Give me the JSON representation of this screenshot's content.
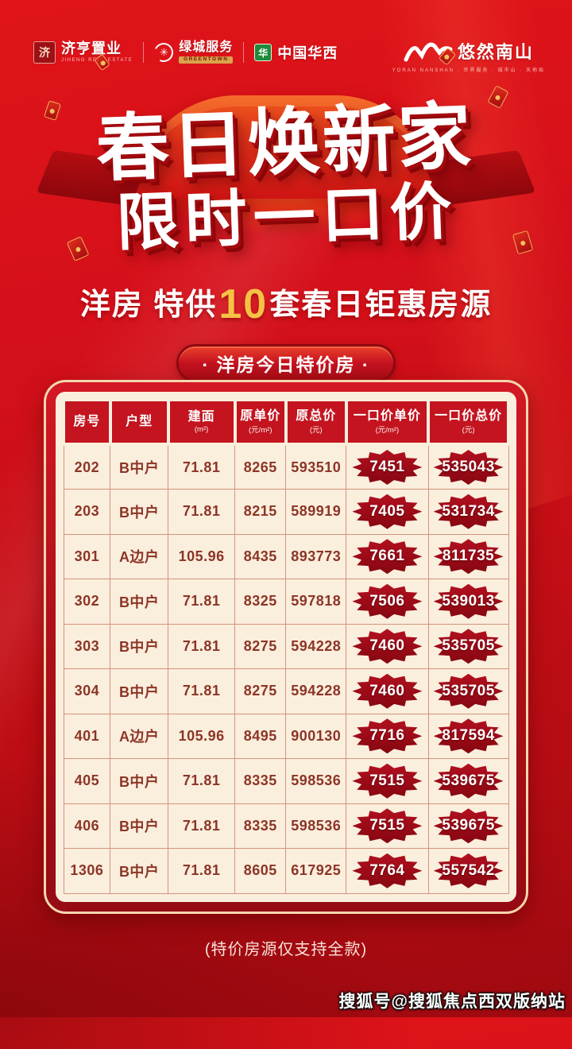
{
  "brand_bar": {
    "jiheng": {
      "name": "济亨置业",
      "sub": "JIHENG REAL ESTATE",
      "seal_char": "济"
    },
    "greentown": {
      "name": "绿城服务",
      "sub": "GREENTOWN",
      "icon_char": "✳"
    },
    "huaxi": {
      "name": "中国华西",
      "icon_char": "华"
    },
    "yoran": {
      "name": "悠然南山",
      "sub": "YORAN NANSHAN · 世界服务 · 城市山 · 天地局"
    }
  },
  "hero": {
    "title_line1": "春日焕新家",
    "title_line2": "限时一口价"
  },
  "subtitle": {
    "prefix": "洋房 特供",
    "count": "10",
    "suffix": "套春日钜惠房源"
  },
  "ribbon": {
    "label": "· 洋房今日特价房 ·"
  },
  "table": {
    "columns": [
      {
        "label": "房号",
        "unit": ""
      },
      {
        "label": "户型",
        "unit": ""
      },
      {
        "label": "建面",
        "unit": "(m²)"
      },
      {
        "label": "原单价",
        "unit": "(元/m²)"
      },
      {
        "label": "原总价",
        "unit": "(元)"
      },
      {
        "label": "一口价单价",
        "unit": "(元/m²)"
      },
      {
        "label": "一口价总价",
        "unit": "(元)"
      }
    ],
    "badge_columns": [
      5,
      6
    ],
    "rows": [
      [
        "202",
        "B中户",
        "71.81",
        "8265",
        "593510",
        "7451",
        "535043"
      ],
      [
        "203",
        "B中户",
        "71.81",
        "8215",
        "589919",
        "7405",
        "531734"
      ],
      [
        "301",
        "A边户",
        "105.96",
        "8435",
        "893773",
        "7661",
        "811735"
      ],
      [
        "302",
        "B中户",
        "71.81",
        "8325",
        "597818",
        "7506",
        "539013"
      ],
      [
        "303",
        "B中户",
        "71.81",
        "8275",
        "594228",
        "7460",
        "535705"
      ],
      [
        "304",
        "B中户",
        "71.81",
        "8275",
        "594228",
        "7460",
        "535705"
      ],
      [
        "401",
        "A边户",
        "105.96",
        "8495",
        "900130",
        "7716",
        "817594"
      ],
      [
        "405",
        "B中户",
        "71.81",
        "8335",
        "598536",
        "7515",
        "539675"
      ],
      [
        "406",
        "B中户",
        "71.81",
        "8335",
        "598536",
        "7515",
        "539675"
      ],
      [
        "1306",
        "B中户",
        "71.81",
        "8605",
        "617925",
        "7764",
        "557542"
      ]
    ]
  },
  "footnote": "(特价房源仅支持全款)",
  "watermark": "搜狐号@搜狐焦点西双版纳站",
  "colors": {
    "background_red": "#d5101a",
    "header_cell_red": "#c3141f",
    "panel_cream": "#faeedd",
    "cell_text_maroon": "#8c3526",
    "badge_red": "#980a16",
    "gold": "#f6c244"
  }
}
